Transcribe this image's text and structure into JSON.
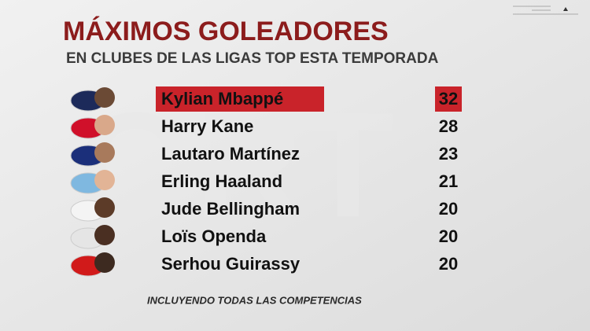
{
  "header": {
    "title": "MÁXIMOS GOLEADORES",
    "subtitle": "EN CLUBES DE LAS LIGAS TOP ESTA TEMPORADA"
  },
  "table": {
    "rows": [
      [
        "Kylian Mbappé",
        32
      ],
      [
        "Harry Kane",
        28
      ],
      [
        "Lautaro Martínez",
        23
      ],
      [
        "Erling Haaland",
        21
      ],
      [
        "Jude Bellingham",
        20
      ],
      [
        "Loïs Openda",
        20
      ],
      [
        "Serhou Guirassy",
        20
      ]
    ]
  },
  "footer": {
    "note": "INCLUYENDO TODAS LAS COMPETENCIAS"
  }
}
